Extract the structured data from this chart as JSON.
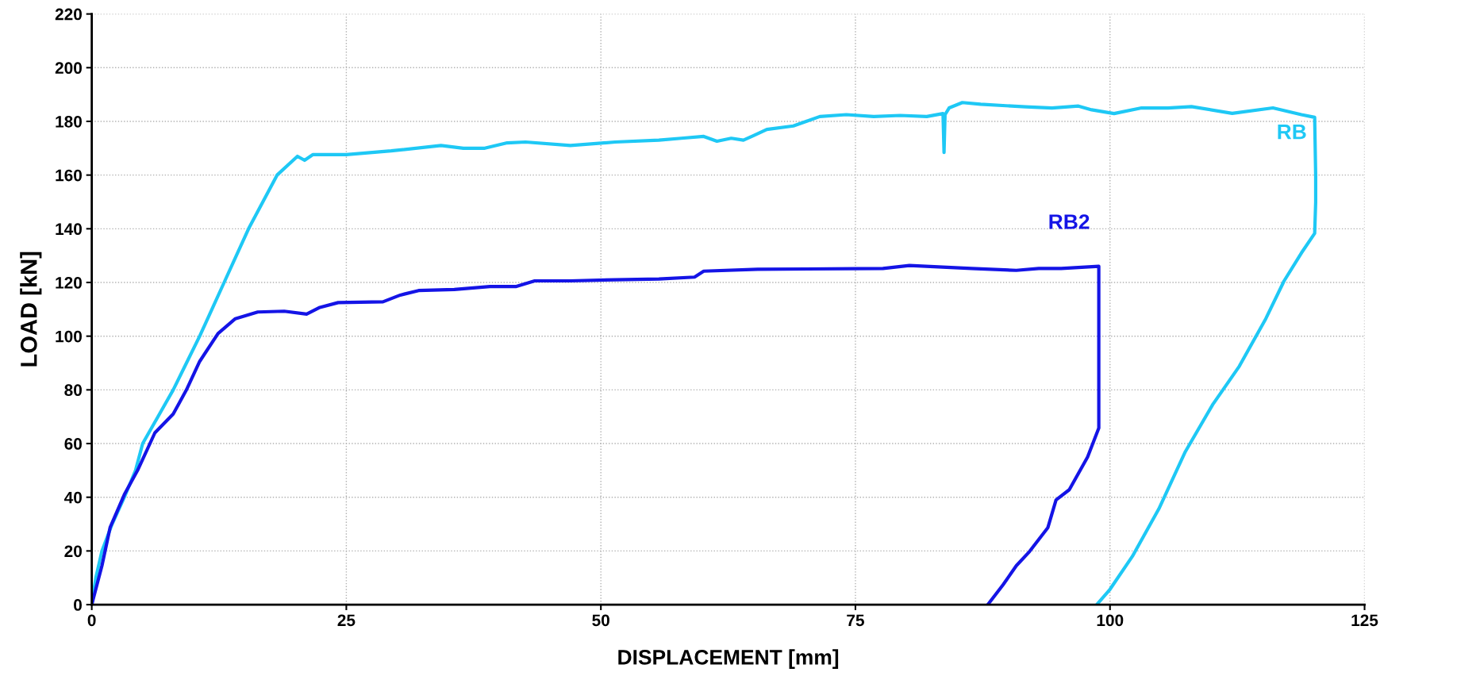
{
  "chart_data": {
    "type": "line",
    "xlabel": "DISPLACEMENT [mm]",
    "ylabel": "LOAD [kN]",
    "xlim": [
      0,
      125
    ],
    "ylim": [
      0,
      220
    ],
    "xticks": [
      0,
      25,
      50,
      75,
      100,
      125
    ],
    "yticks": [
      0,
      20,
      40,
      60,
      80,
      100,
      120,
      140,
      160,
      180,
      200,
      220
    ],
    "grid": true,
    "legend": false,
    "marker": "none",
    "line_style": "solid",
    "series": [
      {
        "name": "RB",
        "color": "#1ec8f5",
        "x": [
          0,
          0.4,
          1,
          2,
          3.2,
          4.3,
          5,
          6.5,
          8,
          9.3,
          10.6,
          11.8,
          13,
          14.2,
          15.4,
          16.8,
          18.2,
          20.2,
          20.9,
          21.7,
          25,
          29.4,
          34.3,
          36.5,
          38.6,
          40.8,
          42.6,
          47,
          51.4,
          55.7,
          57.9,
          60.1,
          61.4,
          62.8,
          64,
          65,
          66.3,
          68.9,
          71.5,
          74.1,
          76.8,
          79.4,
          82,
          83.6,
          83.7,
          83.8,
          84.2,
          85.5,
          87.3,
          91.7,
          94.3,
          96.9,
          98.2,
          100.4,
          103.1,
          105.7,
          108,
          112,
          116,
          118.8,
          120.1,
          120.2,
          120.2,
          120.1,
          118.8,
          117.1,
          115.3,
          112.7,
          110.1,
          107.4,
          104.8,
          102.2,
          100,
          98.7
        ],
        "values": [
          0,
          10,
          20,
          30,
          40,
          50,
          60,
          70,
          80,
          90,
          100,
          110,
          120,
          130,
          140,
          150,
          160,
          167,
          165.5,
          167.6,
          167.6,
          169,
          171,
          170,
          170,
          172,
          172.3,
          171,
          172.3,
          173,
          173.7,
          174.4,
          172.6,
          173.7,
          173,
          174.7,
          177,
          178.3,
          181.8,
          182.5,
          181.8,
          182.2,
          181.8,
          182.9,
          168.4,
          182.5,
          185,
          187,
          186.4,
          185.4,
          185,
          185.7,
          184.3,
          182.9,
          185,
          185,
          185.5,
          183,
          185,
          182.5,
          181.5,
          159.5,
          150,
          138.3,
          131,
          120.6,
          106.5,
          88.8,
          74.6,
          57,
          35.7,
          18,
          5.7,
          0
        ]
      },
      {
        "name": "RB2",
        "color": "#1414e6",
        "x": [
          0,
          1,
          1.8,
          3.2,
          4.5,
          6.2,
          8,
          9.3,
          10.6,
          12.4,
          14.1,
          16.3,
          18.9,
          21.1,
          22.4,
          24.2,
          28.6,
          30.3,
          32.1,
          35.6,
          39.1,
          41.7,
          43.5,
          47,
          51.4,
          55.7,
          59.2,
          60.1,
          65.4,
          77.7,
          80.3,
          86.4,
          90.8,
          93,
          95.2,
          98.9,
          98.9,
          98.9,
          97.8,
          96,
          94.7,
          93.9,
          92.1,
          90.8,
          89.5,
          88
        ],
        "values": [
          0,
          14.5,
          28.7,
          41,
          50,
          64,
          71,
          80,
          90.6,
          101,
          106.5,
          109,
          109.3,
          108.2,
          110.7,
          112.5,
          112.8,
          115.3,
          117,
          117.4,
          118.5,
          118.5,
          120.6,
          120.6,
          121,
          121.3,
          122,
          124.2,
          124.9,
          125.2,
          126.3,
          125.2,
          124.5,
          125.2,
          125.2,
          126,
          85,
          65.8,
          55,
          42.8,
          39,
          28.7,
          19.8,
          14.5,
          7.4,
          0
        ]
      }
    ]
  }
}
